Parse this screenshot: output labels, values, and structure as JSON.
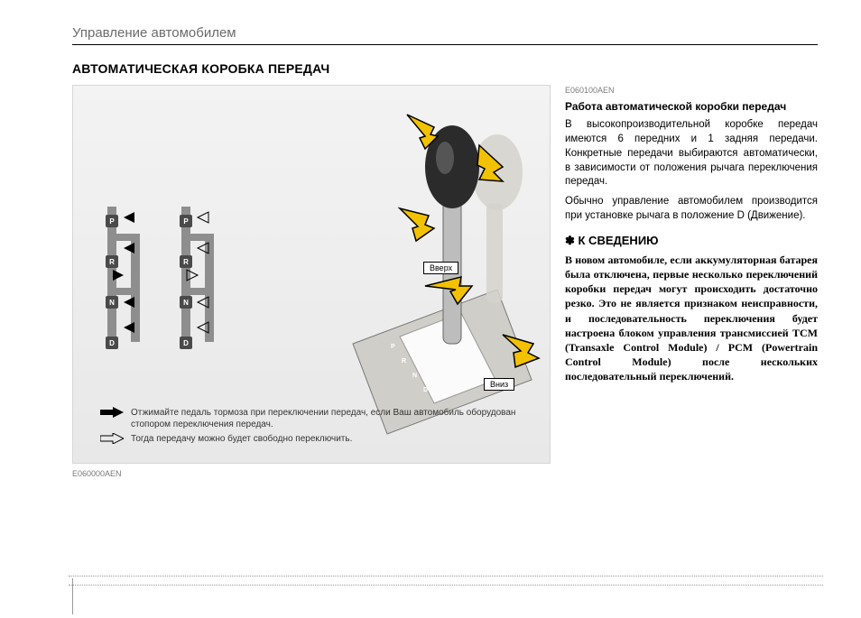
{
  "chapter": "Управление автомобилем",
  "section": "АВТОМАТИЧЕСКАЯ КОРОБКА ПЕРЕДАЧ",
  "figure": {
    "ref_top": "E060100AEN",
    "ref_bottom": "E060000AEN",
    "gate_positions": [
      "P",
      "R",
      "N",
      "D"
    ],
    "label_up": "Вверх",
    "label_down": "Вниз",
    "colors": {
      "bg_top": "#f3f3f3",
      "bg_bottom": "#e8e8e8",
      "gate_body": "#8e8e8e",
      "gate_node": "#4a4a4a",
      "arrow_fill": "#f2c200",
      "arrow_stroke": "#000000",
      "knob_dark": "#2b2b2b",
      "knob_light": "#c7c5bf",
      "knob_shaft": "#bdbdbd",
      "console": "#d0cec8",
      "console_slot": "#fbfbfb",
      "pos_box": "#3a3a3a"
    },
    "legend": {
      "row1": "Отжимайте педаль тормоза при переключении передач, если Ваш автомобиль оборудован стопором переключения передач.",
      "row2": "Тогда передачу можно будет свободно переключить."
    }
  },
  "text": {
    "subhead": "Работа автоматической коробки передач",
    "p1": "В высокопроизводительной коробке передач имеются 6 передних и 1 задняя передачи. Конкретные передачи выбираются автоматически, в зависимости от положения рычага переключения передач.",
    "p2": "Обычно управление автомобилем производится при установке рычага в положение D (Движение).",
    "notice_head": "✽ К СВЕДЕНИЮ",
    "notice_body": "В новом автомобиле, если аккумуляторная батарея была отключена, первые несколько переключений коробки передач могут происходить достаточно резко. Это не является признаком неисправности, и последовательность переключения будет настроена блоком управления трансмиссией TCM (Transaxle Control Module) / PCM (Powertrain Control Module) после нескольких последовательный переключений."
  }
}
